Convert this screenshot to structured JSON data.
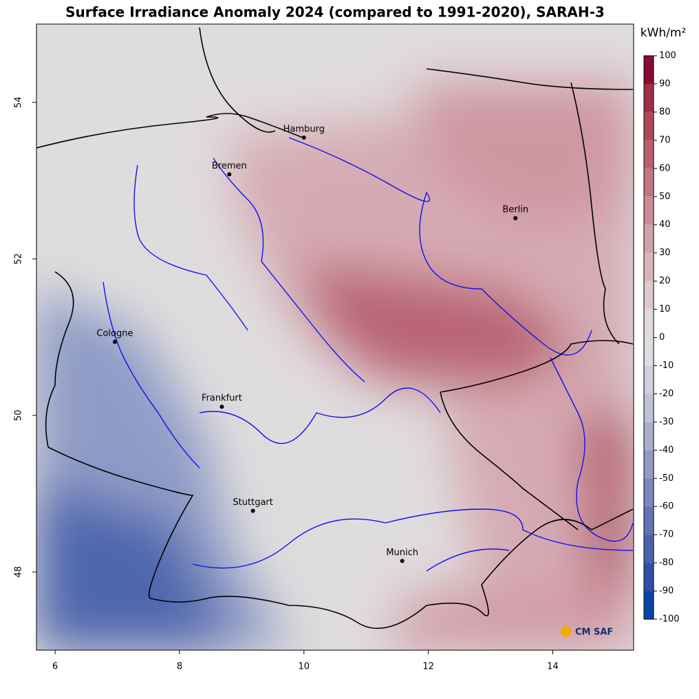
{
  "chart_data": {
    "type": "map",
    "title": "Surface Irradiance Anomaly 2024 (compared to 1991-2020), SARAH-3",
    "xlim": [
      5.7,
      15.3
    ],
    "ylim": [
      47,
      55
    ],
    "xticks": [
      6,
      8,
      10,
      12,
      14
    ],
    "yticks": [
      48,
      50,
      52,
      54
    ],
    "cities": [
      {
        "name": "Hamburg",
        "lon": 10.0,
        "lat": 53.55
      },
      {
        "name": "Bremen",
        "lon": 8.8,
        "lat": 53.08
      },
      {
        "name": "Berlin",
        "lon": 13.4,
        "lat": 52.52
      },
      {
        "name": "Cologne",
        "lon": 6.96,
        "lat": 50.94
      },
      {
        "name": "Frankfurt",
        "lon": 8.68,
        "lat": 50.11
      },
      {
        "name": "Stuttgart",
        "lon": 9.18,
        "lat": 48.78
      },
      {
        "name": "Munich",
        "lon": 11.58,
        "lat": 48.14
      }
    ],
    "colorbar": {
      "unit": "kWh/m²",
      "lim": [
        -100,
        100
      ],
      "ticks": [
        -100,
        -90,
        -80,
        -70,
        -60,
        -50,
        -40,
        -30,
        -20,
        -10,
        0,
        10,
        20,
        30,
        40,
        50,
        60,
        70,
        80,
        90,
        100
      ],
      "colors": [
        "#0a44a8",
        "#2f52a8",
        "#4a62ad",
        "#6373b3",
        "#7c86ba",
        "#949ac3",
        "#aaaecc",
        "#bfc1d5",
        "#d0d1dc",
        "#dddde2",
        "#e2d9db",
        "#dec9cd",
        "#d9b5bb",
        "#d3a1a9",
        "#cc8c97",
        "#c47684",
        "#b95f70",
        "#ad485c",
        "#9d2f47",
        "#8b0a35"
      ]
    },
    "logo": "CM SAF"
  }
}
